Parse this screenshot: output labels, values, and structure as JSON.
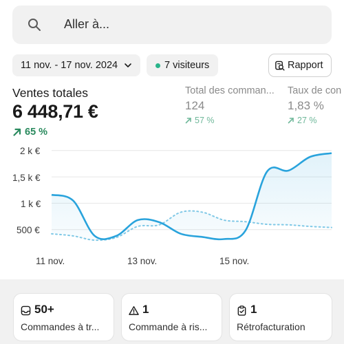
{
  "search": {
    "placeholder": "Aller à..."
  },
  "filters": {
    "date_range": "11 nov. - 17 nov. 2024",
    "visitors": "7 visiteurs",
    "report_button": "Rapport"
  },
  "metrics": {
    "main": {
      "label": "Ventes totales",
      "value": "6 448,71 €",
      "change": "65 %"
    },
    "secondary": [
      {
        "label": "Total des comman...",
        "value": "124",
        "change": "57 %"
      },
      {
        "label": "Taux de con",
        "value": "1,83 %",
        "change": "27 %"
      }
    ]
  },
  "colors": {
    "accent": "#29a3dc",
    "positive": "#2a8a5e",
    "positive_muted": "#6fb89a",
    "visitors_dot": "#29b48a"
  },
  "chart_data": {
    "type": "line",
    "ylabel": "",
    "xlabel": "",
    "y_tick_labels": [
      "2 k €",
      "1,5 k €",
      "1 k €",
      "500 €"
    ],
    "y_ticks": [
      2000,
      1500,
      1000,
      500
    ],
    "x_tick_labels": [
      "11 nov.",
      "13 nov.",
      "15 nov."
    ],
    "x": [
      0,
      1,
      2,
      3,
      4,
      5,
      6,
      7,
      8,
      9,
      10,
      11,
      12,
      13
    ],
    "ylim": [
      0,
      2100
    ],
    "grid": true,
    "series": [
      {
        "style": "solid",
        "color": "#29a3dc",
        "values": [
          1160,
          1050,
          380,
          380,
          680,
          640,
          420,
          360,
          320,
          480,
          1600,
          1620,
          1880,
          1950
        ]
      },
      {
        "style": "dotted",
        "color": "#7fc8e6",
        "values": [
          420,
          380,
          300,
          350,
          560,
          590,
          830,
          830,
          680,
          650,
          600,
          590,
          560,
          540
        ]
      }
    ]
  },
  "cards": [
    {
      "icon": "inbox-icon",
      "count": "50+",
      "label": "Commandes à tr..."
    },
    {
      "icon": "warning-icon",
      "count": "1",
      "label": "Commande à ris..."
    },
    {
      "icon": "clipboard-icon",
      "count": "1",
      "label": "Rétrofacturation"
    }
  ]
}
